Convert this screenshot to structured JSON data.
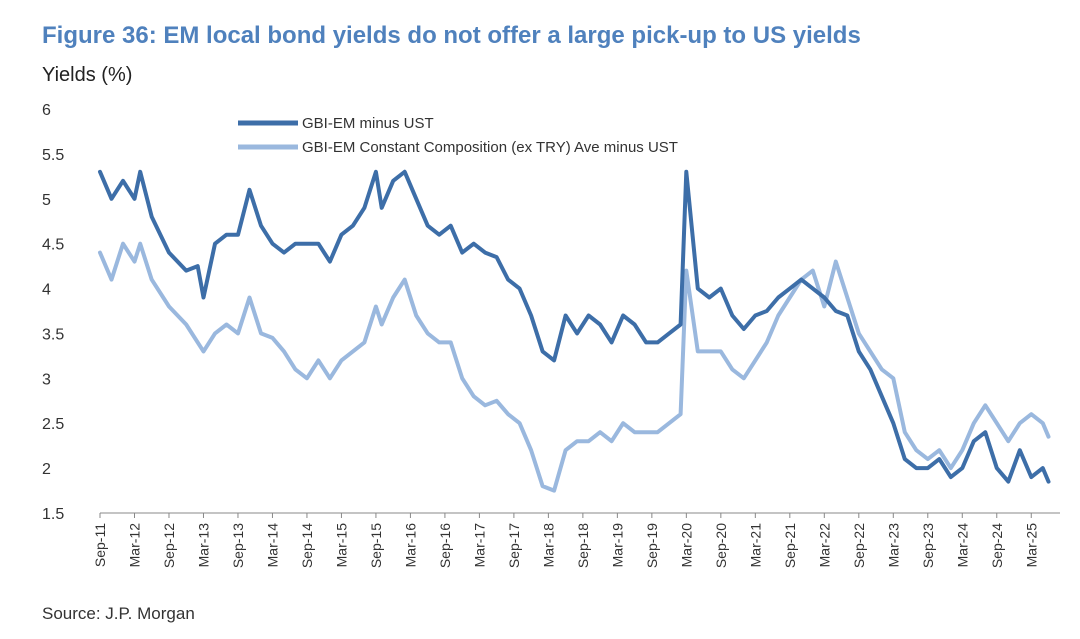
{
  "title": "Figure 36: EM local bond yields do not offer a large pick-up to US yields",
  "source": "Source: J.P. Morgan",
  "colors": {
    "title": "#4f81bd",
    "series1": "#3d6ea8",
    "series2": "#9ab8de"
  },
  "chart_data": {
    "type": "line",
    "ylabel": "Yields (%)",
    "ylim": [
      1.5,
      6
    ],
    "yticks": [
      "6",
      "5.5",
      "5",
      "4.5",
      "4",
      "3.5",
      "3",
      "2.5",
      "2",
      "1.5"
    ],
    "xticks": [
      "Sep-11",
      "Mar-12",
      "Sep-12",
      "Mar-13",
      "Sep-13",
      "Mar-14",
      "Sep-14",
      "Mar-15",
      "Sep-15",
      "Mar-16",
      "Sep-16",
      "Mar-17",
      "Sep-17",
      "Mar-18",
      "Sep-18",
      "Mar-19",
      "Sep-19",
      "Mar-20",
      "Sep-20",
      "Mar-21",
      "Sep-21",
      "Mar-22",
      "Sep-22",
      "Mar-23",
      "Sep-23",
      "Mar-24",
      "Sep-24",
      "Mar-25"
    ],
    "grid": false,
    "legend_position": "top-center",
    "series": [
      {
        "name": "GBI-EM minus UST",
        "color": "#3d6ea8",
        "points": [
          [
            "Sep-11",
            5.3
          ],
          [
            "Nov-11",
            5.0
          ],
          [
            "Jan-12",
            5.2
          ],
          [
            "Mar-12",
            5.0
          ],
          [
            "Apr-12",
            5.3
          ],
          [
            "Jun-12",
            4.8
          ],
          [
            "Sep-12",
            4.4
          ],
          [
            "Dec-12",
            4.2
          ],
          [
            "Feb-13",
            4.25
          ],
          [
            "Mar-13",
            3.9
          ],
          [
            "May-13",
            4.5
          ],
          [
            "Jul-13",
            4.6
          ],
          [
            "Sep-13",
            4.6
          ],
          [
            "Nov-13",
            5.1
          ],
          [
            "Jan-14",
            4.7
          ],
          [
            "Mar-14",
            4.5
          ],
          [
            "May-14",
            4.4
          ],
          [
            "Jul-14",
            4.5
          ],
          [
            "Sep-14",
            4.5
          ],
          [
            "Nov-14",
            4.5
          ],
          [
            "Jan-15",
            4.3
          ],
          [
            "Mar-15",
            4.6
          ],
          [
            "May-15",
            4.7
          ],
          [
            "Jul-15",
            4.9
          ],
          [
            "Sep-15",
            5.3
          ],
          [
            "Oct-15",
            4.9
          ],
          [
            "Dec-15",
            5.2
          ],
          [
            "Feb-16",
            5.3
          ],
          [
            "Apr-16",
            5.0
          ],
          [
            "Jun-16",
            4.7
          ],
          [
            "Aug-16",
            4.6
          ],
          [
            "Oct-16",
            4.7
          ],
          [
            "Dec-16",
            4.4
          ],
          [
            "Feb-17",
            4.5
          ],
          [
            "Apr-17",
            4.4
          ],
          [
            "Jun-17",
            4.35
          ],
          [
            "Aug-17",
            4.1
          ],
          [
            "Oct-17",
            4.0
          ],
          [
            "Dec-17",
            3.7
          ],
          [
            "Feb-18",
            3.3
          ],
          [
            "Apr-18",
            3.2
          ],
          [
            "Jun-18",
            3.7
          ],
          [
            "Aug-18",
            3.5
          ],
          [
            "Oct-18",
            3.7
          ],
          [
            "Dec-18",
            3.6
          ],
          [
            "Feb-19",
            3.4
          ],
          [
            "Apr-19",
            3.7
          ],
          [
            "Jun-19",
            3.6
          ],
          [
            "Aug-19",
            3.4
          ],
          [
            "Oct-19",
            3.4
          ],
          [
            "Dec-19",
            3.5
          ],
          [
            "Feb-20",
            3.6
          ],
          [
            "Mar-20",
            5.3
          ],
          [
            "May-20",
            4.0
          ],
          [
            "Jul-20",
            3.9
          ],
          [
            "Sep-20",
            4.0
          ],
          [
            "Nov-20",
            3.7
          ],
          [
            "Jan-21",
            3.55
          ],
          [
            "Mar-21",
            3.7
          ],
          [
            "May-21",
            3.75
          ],
          [
            "Jul-21",
            3.9
          ],
          [
            "Sep-21",
            4.0
          ],
          [
            "Nov-21",
            4.1
          ],
          [
            "Jan-22",
            4.0
          ],
          [
            "Mar-22",
            3.9
          ],
          [
            "May-22",
            3.75
          ],
          [
            "Jul-22",
            3.7
          ],
          [
            "Sep-22",
            3.3
          ],
          [
            "Nov-22",
            3.1
          ],
          [
            "Jan-23",
            2.8
          ],
          [
            "Mar-23",
            2.5
          ],
          [
            "May-23",
            2.1
          ],
          [
            "Jul-23",
            2.0
          ],
          [
            "Sep-23",
            2.0
          ],
          [
            "Nov-23",
            2.1
          ],
          [
            "Jan-24",
            1.9
          ],
          [
            "Mar-24",
            2.0
          ],
          [
            "May-24",
            2.3
          ],
          [
            "Jul-24",
            2.4
          ],
          [
            "Sep-24",
            2.0
          ],
          [
            "Nov-24",
            1.85
          ],
          [
            "Jan-25",
            2.2
          ],
          [
            "Mar-25",
            1.9
          ],
          [
            "May-25",
            2.0
          ],
          [
            "Jun-25",
            1.85
          ]
        ]
      },
      {
        "name": "GBI-EM Constant Composition (ex TRY) Ave minus UST",
        "color": "#9ab8de",
        "points": [
          [
            "Sep-11",
            4.4
          ],
          [
            "Nov-11",
            4.1
          ],
          [
            "Jan-12",
            4.5
          ],
          [
            "Mar-12",
            4.3
          ],
          [
            "Apr-12",
            4.5
          ],
          [
            "Jun-12",
            4.1
          ],
          [
            "Sep-12",
            3.8
          ],
          [
            "Dec-12",
            3.6
          ],
          [
            "Feb-13",
            3.4
          ],
          [
            "Mar-13",
            3.3
          ],
          [
            "May-13",
            3.5
          ],
          [
            "Jul-13",
            3.6
          ],
          [
            "Sep-13",
            3.5
          ],
          [
            "Nov-13",
            3.9
          ],
          [
            "Jan-14",
            3.5
          ],
          [
            "Mar-14",
            3.45
          ],
          [
            "May-14",
            3.3
          ],
          [
            "Jul-14",
            3.1
          ],
          [
            "Sep-14",
            3.0
          ],
          [
            "Nov-14",
            3.2
          ],
          [
            "Jan-15",
            3.0
          ],
          [
            "Mar-15",
            3.2
          ],
          [
            "May-15",
            3.3
          ],
          [
            "Jul-15",
            3.4
          ],
          [
            "Sep-15",
            3.8
          ],
          [
            "Oct-15",
            3.6
          ],
          [
            "Dec-15",
            3.9
          ],
          [
            "Feb-16",
            4.1
          ],
          [
            "Apr-16",
            3.7
          ],
          [
            "Jun-16",
            3.5
          ],
          [
            "Aug-16",
            3.4
          ],
          [
            "Oct-16",
            3.4
          ],
          [
            "Dec-16",
            3.0
          ],
          [
            "Feb-17",
            2.8
          ],
          [
            "Apr-17",
            2.7
          ],
          [
            "Jun-17",
            2.75
          ],
          [
            "Aug-17",
            2.6
          ],
          [
            "Oct-17",
            2.5
          ],
          [
            "Dec-17",
            2.2
          ],
          [
            "Feb-18",
            1.8
          ],
          [
            "Apr-18",
            1.75
          ],
          [
            "Jun-18",
            2.2
          ],
          [
            "Aug-18",
            2.3
          ],
          [
            "Oct-18",
            2.3
          ],
          [
            "Dec-18",
            2.4
          ],
          [
            "Feb-19",
            2.3
          ],
          [
            "Apr-19",
            2.5
          ],
          [
            "Jun-19",
            2.4
          ],
          [
            "Aug-19",
            2.4
          ],
          [
            "Oct-19",
            2.4
          ],
          [
            "Dec-19",
            2.5
          ],
          [
            "Feb-20",
            2.6
          ],
          [
            "Mar-20",
            4.2
          ],
          [
            "May-20",
            3.3
          ],
          [
            "Jul-20",
            3.3
          ],
          [
            "Sep-20",
            3.3
          ],
          [
            "Nov-20",
            3.1
          ],
          [
            "Jan-21",
            3.0
          ],
          [
            "Mar-21",
            3.2
          ],
          [
            "May-21",
            3.4
          ],
          [
            "Jul-21",
            3.7
          ],
          [
            "Sep-21",
            3.9
          ],
          [
            "Nov-21",
            4.1
          ],
          [
            "Jan-22",
            4.2
          ],
          [
            "Mar-22",
            3.8
          ],
          [
            "May-22",
            4.3
          ],
          [
            "Jul-22",
            3.9
          ],
          [
            "Sep-22",
            3.5
          ],
          [
            "Nov-22",
            3.3
          ],
          [
            "Jan-23",
            3.1
          ],
          [
            "Mar-23",
            3.0
          ],
          [
            "May-23",
            2.4
          ],
          [
            "Jul-23",
            2.2
          ],
          [
            "Sep-23",
            2.1
          ],
          [
            "Nov-23",
            2.2
          ],
          [
            "Jan-24",
            2.0
          ],
          [
            "Mar-24",
            2.2
          ],
          [
            "May-24",
            2.5
          ],
          [
            "Jul-24",
            2.7
          ],
          [
            "Sep-24",
            2.5
          ],
          [
            "Nov-24",
            2.3
          ],
          [
            "Jan-25",
            2.5
          ],
          [
            "Mar-25",
            2.6
          ],
          [
            "May-25",
            2.5
          ],
          [
            "Jun-25",
            2.35
          ]
        ]
      }
    ]
  }
}
